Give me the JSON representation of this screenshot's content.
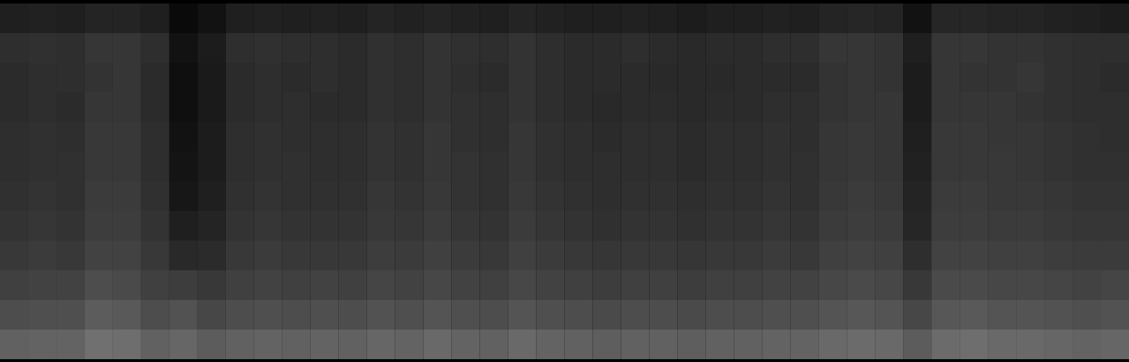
{
  "chart_data": {
    "type": "heatmap",
    "tick_labels": false,
    "zlim": [
      0,
      100
    ],
    "z": [
      [
        12,
        13,
        12,
        14,
        14,
        12,
        4,
        7,
        12,
        13,
        12,
        13,
        12,
        14,
        13,
        14,
        13,
        12,
        14,
        13,
        12,
        12,
        13,
        12,
        11,
        12,
        12,
        13,
        12,
        14,
        15,
        14,
        7,
        15,
        15,
        14,
        14,
        13,
        12,
        11
      ],
      [
        18,
        19,
        18,
        21,
        21,
        18,
        7,
        11,
        18,
        19,
        18,
        18,
        17,
        19,
        18,
        20,
        19,
        18,
        20,
        18,
        17,
        17,
        18,
        17,
        16,
        17,
        17,
        18,
        18,
        21,
        21,
        20,
        12,
        21,
        21,
        20,
        20,
        19,
        18,
        18
      ],
      [
        17,
        18,
        18,
        20,
        21,
        17,
        6,
        10,
        17,
        18,
        17,
        18,
        17,
        19,
        18,
        20,
        18,
        17,
        20,
        18,
        17,
        17,
        17,
        16,
        16,
        16,
        17,
        17,
        17,
        20,
        21,
        20,
        11,
        21,
        20,
        20,
        21,
        19,
        18,
        17
      ],
      [
        17,
        18,
        17,
        21,
        21,
        17,
        6,
        10,
        17,
        18,
        18,
        17,
        17,
        19,
        18,
        20,
        19,
        18,
        20,
        18,
        17,
        16,
        17,
        17,
        16,
        17,
        17,
        18,
        18,
        20,
        21,
        21,
        11,
        21,
        21,
        21,
        20,
        19,
        18,
        18
      ],
      [
        18,
        19,
        18,
        22,
        22,
        18,
        7,
        11,
        18,
        19,
        18,
        18,
        18,
        20,
        19,
        21,
        19,
        18,
        21,
        19,
        18,
        17,
        18,
        18,
        17,
        18,
        18,
        19,
        18,
        21,
        22,
        21,
        12,
        22,
        22,
        21,
        21,
        20,
        19,
        18
      ],
      [
        18,
        19,
        19,
        22,
        22,
        18,
        8,
        11,
        18,
        19,
        19,
        18,
        18,
        20,
        19,
        21,
        20,
        19,
        21,
        19,
        18,
        18,
        18,
        18,
        17,
        18,
        18,
        19,
        19,
        21,
        22,
        21,
        13,
        22,
        22,
        22,
        21,
        20,
        19,
        19
      ],
      [
        19,
        20,
        19,
        23,
        23,
        19,
        9,
        12,
        19,
        20,
        19,
        19,
        19,
        21,
        20,
        22,
        20,
        19,
        22,
        20,
        19,
        18,
        19,
        19,
        18,
        19,
        19,
        20,
        19,
        22,
        23,
        22,
        14,
        23,
        23,
        22,
        22,
        21,
        20,
        20
      ],
      [
        20,
        21,
        20,
        24,
        24,
        20,
        12,
        14,
        20,
        21,
        20,
        20,
        20,
        22,
        21,
        23,
        21,
        20,
        23,
        21,
        20,
        19,
        20,
        20,
        19,
        20,
        20,
        21,
        20,
        23,
        24,
        23,
        15,
        24,
        24,
        23,
        23,
        22,
        21,
        21
      ],
      [
        22,
        23,
        22,
        26,
        26,
        22,
        16,
        17,
        22,
        23,
        22,
        22,
        22,
        24,
        23,
        25,
        23,
        22,
        25,
        23,
        22,
        21,
        22,
        22,
        21,
        22,
        22,
        23,
        22,
        25,
        26,
        25,
        18,
        26,
        26,
        25,
        25,
        24,
        23,
        23
      ],
      [
        25,
        26,
        26,
        30,
        29,
        25,
        24,
        22,
        25,
        26,
        25,
        26,
        25,
        27,
        26,
        28,
        26,
        25,
        28,
        26,
        25,
        24,
        25,
        25,
        24,
        25,
        25,
        26,
        26,
        28,
        29,
        28,
        22,
        29,
        29,
        28,
        28,
        27,
        26,
        27
      ],
      [
        30,
        31,
        31,
        36,
        35,
        30,
        32,
        28,
        30,
        31,
        30,
        31,
        30,
        32,
        31,
        33,
        31,
        30,
        33,
        31,
        30,
        29,
        30,
        30,
        29,
        30,
        30,
        31,
        31,
        33,
        34,
        33,
        28,
        34,
        35,
        33,
        33,
        32,
        31,
        32
      ],
      [
        38,
        39,
        39,
        44,
        43,
        38,
        40,
        36,
        38,
        39,
        38,
        39,
        38,
        40,
        39,
        41,
        39,
        38,
        41,
        39,
        38,
        37,
        38,
        38,
        37,
        38,
        38,
        39,
        39,
        41,
        42,
        41,
        36,
        42,
        43,
        41,
        41,
        40,
        39,
        40
      ]
    ]
  }
}
